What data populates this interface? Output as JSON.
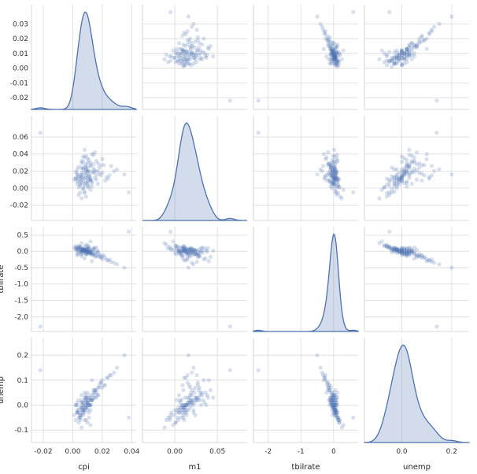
{
  "chart_data": {
    "type": "scatter",
    "kind": "pairplot",
    "variables": [
      "cpi",
      "m1",
      "tbilrate",
      "unemp"
    ],
    "xlabels": [
      "cpi",
      "m1",
      "tbilrate",
      "unemp"
    ],
    "ylabels": [
      "",
      "",
      "tbilrate",
      "unemp"
    ],
    "ranges": {
      "cpi": [
        -0.028,
        0.043
      ],
      "m1": [
        -0.038,
        0.085
      ],
      "tbilrate": [
        -2.45,
        0.75
      ],
      "unemp": [
        -0.15,
        0.27
      ]
    },
    "ticks": {
      "cpi": [
        -0.02,
        0.0,
        0.02,
        0.04
      ],
      "m1": [
        0.0,
        0.05
      ],
      "tbilrate": [
        -2,
        -1,
        0
      ],
      "unemp": [
        0.0,
        0.2
      ]
    },
    "tick_labels": {
      "cpi": [
        "-0.02",
        "0.00",
        "0.02",
        "0.04"
      ],
      "m1": [
        "0.00",
        "0.05"
      ],
      "tbilrate": [
        "-2",
        "-1",
        "0"
      ],
      "unemp": [
        "0.0",
        "0.2"
      ]
    },
    "y_tick_labels": {
      "cpi": [
        "-0.02",
        "-0.01",
        "0.00",
        "0.01",
        "0.02",
        "0.03"
      ],
      "m1": [
        "-0.02",
        "0.00",
        "0.02",
        "0.04",
        "0.06"
      ],
      "tbilrate": [
        "-2.0",
        "-1.5",
        "-1.0",
        "-0.5",
        "0.0",
        "0.5"
      ],
      "unemp": [
        "-0.1",
        "0.0",
        "0.1",
        "0.2"
      ]
    },
    "y_ticks": {
      "cpi": [
        -0.02,
        -0.01,
        0.0,
        0.01,
        0.02,
        0.03
      ],
      "m1": [
        -0.02,
        0.0,
        0.02,
        0.04,
        0.06
      ],
      "tbilrate": [
        -2.0,
        -1.5,
        -1.0,
        -0.5,
        0.0,
        0.5
      ],
      "unemp": [
        -0.1,
        0.0,
        0.1,
        0.2
      ]
    },
    "observations": [
      [
        0.012,
        0.01,
        0.05,
        -0.02
      ],
      [
        0.006,
        0.015,
        -0.1,
        0.01
      ],
      [
        0.003,
        0.005,
        0.02,
        -0.03
      ],
      [
        0.009,
        0.022,
        -0.05,
        0.0
      ],
      [
        0.015,
        0.012,
        0.1,
        0.03
      ],
      [
        0.007,
        0.008,
        -0.02,
        -0.01
      ],
      [
        0.01,
        0.03,
        0.0,
        0.05
      ],
      [
        0.005,
        -0.005,
        0.08,
        -0.04
      ],
      [
        0.02,
        0.018,
        -0.15,
        0.07
      ],
      [
        0.008,
        0.003,
        0.03,
        -0.02
      ],
      [
        0.004,
        0.025,
        -0.08,
        0.02
      ],
      [
        0.011,
        0.01,
        0.15,
        -0.05
      ],
      [
        0.013,
        0.04,
        -0.3,
        0.1
      ],
      [
        0.002,
        0.012,
        0.05,
        0.0
      ],
      [
        0.009,
        -0.01,
        0.2,
        -0.06
      ],
      [
        0.017,
        0.02,
        -0.02,
        0.04
      ],
      [
        0.006,
        0.006,
        0.0,
        -0.03
      ],
      [
        0.025,
        0.015,
        -0.25,
        0.12
      ],
      [
        0.01,
        0.035,
        0.1,
        0.01
      ],
      [
        0.007,
        0.0,
        -0.05,
        -0.02
      ],
      [
        0.014,
        0.028,
        0.05,
        0.06
      ],
      [
        0.003,
        0.008,
        -0.12,
        0.0
      ],
      [
        0.008,
        0.045,
        0.02,
        0.03
      ],
      [
        0.012,
        -0.002,
        0.3,
        -0.08
      ],
      [
        0.03,
        0.022,
        -0.4,
        0.15
      ],
      [
        0.005,
        0.011,
        0.0,
        -0.01
      ],
      [
        0.009,
        0.017,
        0.07,
        0.02
      ],
      [
        0.022,
        0.009,
        -0.2,
        0.08
      ],
      [
        0.006,
        0.024,
        0.04,
        -0.04
      ],
      [
        0.011,
        0.014,
        -0.06,
        0.0
      ],
      [
        0.016,
        0.032,
        0.12,
        0.05
      ],
      [
        0.004,
        -0.008,
        0.09,
        -0.05
      ],
      [
        0.01,
        0.02,
        -0.03,
        0.01
      ],
      [
        0.008,
        0.005,
        0.01,
        -0.02
      ],
      [
        0.019,
        0.027,
        -0.18,
        0.09
      ],
      [
        0.007,
        0.013,
        0.06,
        -0.03
      ],
      [
        0.013,
        0.002,
        -0.09,
        0.02
      ],
      [
        0.002,
        0.019,
        0.11,
        0.0
      ],
      [
        0.009,
        0.038,
        -0.01,
        0.04
      ],
      [
        0.035,
        0.016,
        -0.5,
        0.2
      ],
      [
        0.006,
        0.01,
        0.03,
        -0.01
      ],
      [
        0.012,
        0.026,
        -0.07,
        0.03
      ],
      [
        0.005,
        0.004,
        0.14,
        -0.06
      ],
      [
        0.01,
        0.012,
        0.0,
        0.0
      ],
      [
        0.015,
        0.021,
        -0.11,
        0.06
      ],
      [
        0.008,
        -0.004,
        0.05,
        -0.03
      ],
      [
        0.011,
        0.033,
        -0.04,
        0.02
      ],
      [
        0.003,
        0.016,
        0.08,
        -0.02
      ],
      [
        0.024,
        0.011,
        -0.28,
        0.11
      ],
      [
        0.007,
        0.023,
        0.02,
        0.01
      ],
      [
        -0.022,
        0.065,
        -2.3,
        0.14
      ],
      [
        0.038,
        -0.005,
        0.6,
        -0.05
      ],
      [
        0.009,
        0.007,
        -0.02,
        -0.01
      ],
      [
        0.014,
        0.018,
        0.06,
        0.04
      ],
      [
        0.006,
        0.029,
        -0.15,
        0.02
      ],
      [
        0.01,
        0.001,
        0.18,
        -0.07
      ],
      [
        0.018,
        0.024,
        -0.08,
        0.07
      ],
      [
        0.004,
        0.014,
        0.04,
        -0.02
      ],
      [
        0.012,
        0.009,
        0.0,
        0.0
      ],
      [
        0.008,
        0.036,
        -0.22,
        0.05
      ],
      [
        0.001,
        0.01,
        0.1,
        -0.04
      ],
      [
        0.016,
        0.015,
        -0.03,
        0.03
      ],
      [
        0.01,
        0.02,
        0.07,
        0.01
      ],
      [
        0.006,
        -0.012,
        0.25,
        -0.09
      ],
      [
        0.021,
        0.027,
        -0.12,
        0.08
      ],
      [
        0.009,
        0.012,
        0.01,
        -0.01
      ],
      [
        0.013,
        0.006,
        -0.05,
        0.02
      ],
      [
        0.007,
        0.031,
        0.09,
        0.0
      ],
      [
        0.011,
        0.017,
        -0.01,
        0.03
      ],
      [
        0.005,
        0.003,
        0.13,
        -0.05
      ],
      [
        0.028,
        0.02,
        -0.35,
        0.13
      ],
      [
        0.008,
        0.025,
        0.03,
        0.02
      ],
      [
        0.012,
        0.013,
        -0.06,
        0.0
      ],
      [
        0.003,
        0.022,
        0.05,
        -0.03
      ],
      [
        0.015,
        0.042,
        -0.17,
        0.06
      ],
      [
        0.01,
        0.008,
        0.08,
        -0.02
      ],
      [
        0.006,
        0.016,
        -0.04,
        0.01
      ],
      [
        0.017,
        0.005,
        0.02,
        0.04
      ],
      [
        0.009,
        0.028,
        -0.1,
        0.03
      ],
      [
        0.002,
        0.011,
        0.16,
        -0.06
      ],
      [
        0.013,
        0.019,
        -0.02,
        0.02
      ],
      [
        0.007,
        -0.001,
        0.06,
        -0.04
      ],
      [
        0.02,
        0.034,
        -0.24,
        0.1
      ],
      [
        0.011,
        0.014,
        0.0,
        0.0
      ],
      [
        0.004,
        0.009,
        0.11,
        -0.03
      ],
      [
        0.014,
        0.023,
        -0.09,
        0.05
      ],
      [
        0.008,
        0.018,
        0.04,
        0.01
      ],
      [
        0.01,
        0.004,
        -0.03,
        -0.01
      ],
      [
        0.026,
        0.026,
        -0.32,
        0.12
      ],
      [
        0.006,
        0.012,
        0.07,
        -0.02
      ],
      [
        0.012,
        0.03,
        -0.05,
        0.04
      ],
      [
        0.005,
        0.007,
        0.12,
        -0.05
      ],
      [
        0.009,
        0.021,
        0.0,
        0.02
      ],
      [
        0.016,
        0.01,
        -0.14,
        0.06
      ],
      [
        0.007,
        0.037,
        0.03,
        0.0
      ],
      [
        0.011,
        0.002,
        0.09,
        -0.03
      ],
      [
        0.003,
        0.017,
        -0.07,
        0.01
      ],
      [
        0.019,
        0.015,
        -0.19,
        0.09
      ],
      [
        0.01,
        0.024,
        0.01,
        0.03
      ],
      [
        0.008,
        0.011,
        0.05,
        -0.01
      ],
      [
        0.013,
        0.008,
        -0.11,
        0.02
      ],
      [
        0.006,
        0.032,
        0.02,
        0.04
      ],
      [
        0.015,
        0.019,
        -0.06,
        0.05
      ],
      [
        0.004,
        0.001,
        0.17,
        -0.07
      ],
      [
        0.012,
        0.027,
        -0.02,
        0.02
      ],
      [
        0.009,
        0.015,
        0.06,
        0.0
      ],
      [
        0.023,
        0.013,
        -0.27,
        0.11
      ],
      [
        0.007,
        0.022,
        0.04,
        -0.02
      ],
      [
        0.01,
        0.006,
        -0.08,
        0.01
      ],
      [
        0.014,
        0.039,
        0.1,
        0.03
      ],
      [
        0.005,
        0.014,
        -0.03,
        -0.04
      ],
      [
        0.011,
        0.02,
        0.08,
        0.02
      ],
      [
        0.008,
        -0.006,
        0.14,
        -0.06
      ],
      [
        0.017,
        0.029,
        -0.16,
        0.07
      ],
      [
        0.012,
        0.01,
        0.0,
        0.0
      ],
      [
        0.006,
        0.018,
        0.05,
        -0.01
      ],
      [
        0.009,
        0.025,
        -0.09,
        0.03
      ],
      [
        0.003,
        0.012,
        0.11,
        -0.03
      ],
      [
        0.018,
        0.017,
        -0.13,
        0.08
      ]
    ]
  }
}
